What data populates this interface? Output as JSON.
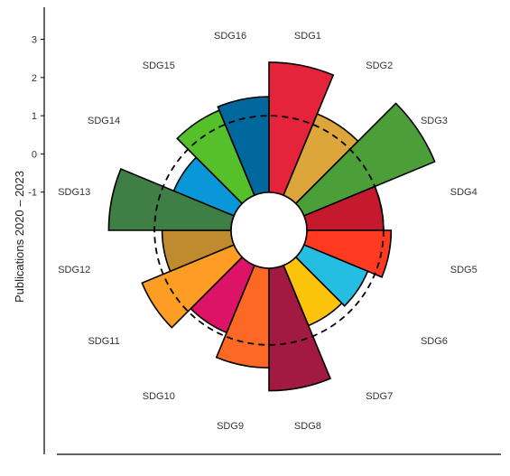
{
  "chart_data": {
    "type": "polar-bar",
    "title": "",
    "ylabel": "Publications 2020 – 2023",
    "y_ticks": [
      3,
      2,
      1,
      0,
      -1
    ],
    "ylim": [
      -2,
      4.03
    ],
    "reference_circle": 1,
    "reference_style": "dashed",
    "bar_outline": "#000000",
    "categories": [
      "SDG1",
      "SDG2",
      "SDG3",
      "SDG4",
      "SDG5",
      "SDG6",
      "SDG7",
      "SDG8",
      "SDG9",
      "SDG10",
      "SDG11",
      "SDG12",
      "SDG13",
      "SDG14",
      "SDG15",
      "SDG16"
    ],
    "values": [
      2.4,
      1.3,
      2.7,
      1.0,
      1.2,
      0.8,
      0.7,
      2.2,
      1.6,
      0.9,
      1.6,
      0.8,
      2.2,
      0.7,
      1.4,
      1.5
    ],
    "colors": [
      "#e5243b",
      "#dda63a",
      "#4c9f38",
      "#c5192d",
      "#ff3a21",
      "#26bde2",
      "#fcc30b",
      "#a21942",
      "#fd6925",
      "#dd1367",
      "#fd9d24",
      "#bf8b2e",
      "#3f7e44",
      "#0a97d9",
      "#56c02b",
      "#00689d"
    ]
  }
}
